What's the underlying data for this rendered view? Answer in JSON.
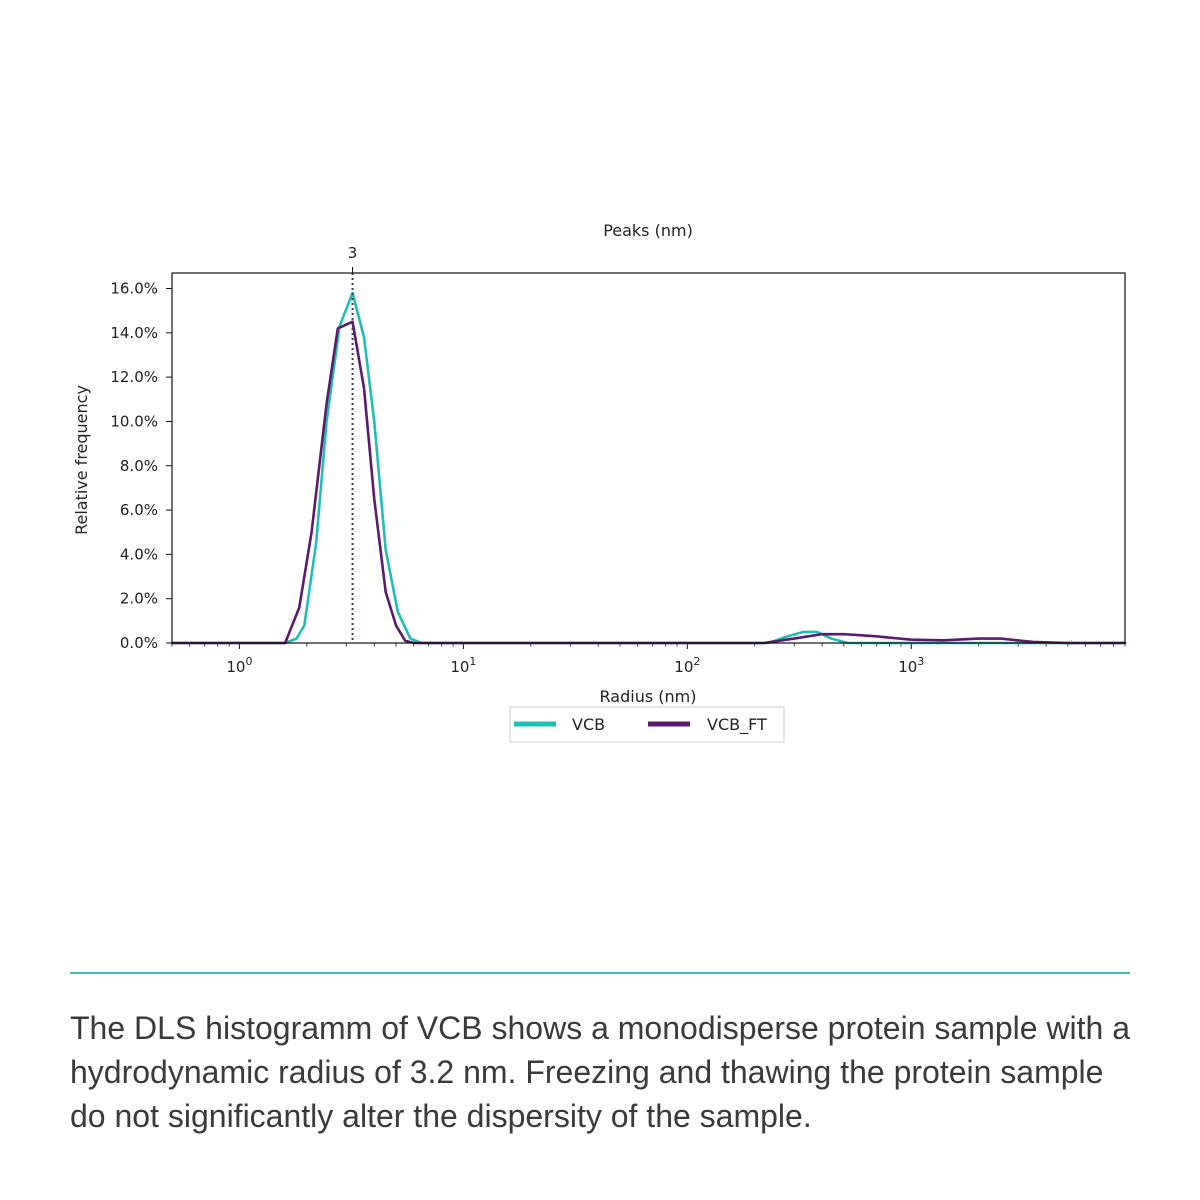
{
  "chart_data": {
    "type": "line",
    "top_axis_label": "Peaks (nm)",
    "peak_marker": {
      "x": 3.2,
      "label": "3"
    },
    "xlabel": "Radius (nm)",
    "ylabel": "Relative frequency",
    "x_scale": "log",
    "xlim": [
      0.5,
      9000
    ],
    "ylim": [
      0,
      0.167
    ],
    "x_ticks": [
      {
        "value": 1,
        "base": "10",
        "exp": "0"
      },
      {
        "value": 10,
        "base": "10",
        "exp": "1"
      },
      {
        "value": 100,
        "base": "10",
        "exp": "2"
      },
      {
        "value": 1000,
        "base": "10",
        "exp": "3"
      }
    ],
    "y_ticks": [
      {
        "value": 0.0,
        "label": "0.0%"
      },
      {
        "value": 0.02,
        "label": "2.0%"
      },
      {
        "value": 0.04,
        "label": "4.0%"
      },
      {
        "value": 0.06,
        "label": "6.0%"
      },
      {
        "value": 0.08,
        "label": "8.0%"
      },
      {
        "value": 0.1,
        "label": "10.0%"
      },
      {
        "value": 0.12,
        "label": "12.0%"
      },
      {
        "value": 0.14,
        "label": "14.0%"
      },
      {
        "value": 0.16,
        "label": "16.0%"
      }
    ],
    "legend_position": "bottom-center",
    "grid": false,
    "series": [
      {
        "name": "VCB",
        "color": "#1dbfb4",
        "points": [
          [
            0.5,
            0
          ],
          [
            1.6,
            0
          ],
          [
            1.8,
            0.002
          ],
          [
            1.95,
            0.008
          ],
          [
            2.2,
            0.045
          ],
          [
            2.45,
            0.1
          ],
          [
            2.8,
            0.143
          ],
          [
            3.2,
            0.158
          ],
          [
            3.6,
            0.138
          ],
          [
            4.0,
            0.1
          ],
          [
            4.5,
            0.042
          ],
          [
            5.1,
            0.014
          ],
          [
            5.8,
            0.002
          ],
          [
            6.5,
            0
          ],
          [
            100,
            0
          ],
          [
            230,
            0
          ],
          [
            280,
            0.003
          ],
          [
            330,
            0.005
          ],
          [
            380,
            0.005
          ],
          [
            440,
            0.002
          ],
          [
            520,
            0
          ],
          [
            9000,
            0
          ]
        ]
      },
      {
        "name": "VCB_FT",
        "color": "#5a1a6e",
        "points": [
          [
            0.5,
            0
          ],
          [
            1.6,
            0
          ],
          [
            1.85,
            0.016
          ],
          [
            2.1,
            0.05
          ],
          [
            2.45,
            0.108
          ],
          [
            2.75,
            0.142
          ],
          [
            3.2,
            0.145
          ],
          [
            3.6,
            0.115
          ],
          [
            4.0,
            0.065
          ],
          [
            4.5,
            0.023
          ],
          [
            5.0,
            0.008
          ],
          [
            5.5,
            0.001
          ],
          [
            6.0,
            0
          ],
          [
            100,
            0
          ],
          [
            220,
            0
          ],
          [
            300,
            0.002
          ],
          [
            400,
            0.004
          ],
          [
            500,
            0.004
          ],
          [
            700,
            0.003
          ],
          [
            1000,
            0.0015
          ],
          [
            1400,
            0.0012
          ],
          [
            2000,
            0.002
          ],
          [
            2500,
            0.002
          ],
          [
            3500,
            0.0005
          ],
          [
            5000,
            0
          ],
          [
            9000,
            0
          ]
        ]
      }
    ]
  },
  "caption": "The DLS histogramm of VCB shows a monodisperse protein sample with a hydrodynamic radius of 3.2 nm. Freezing and thawing the protein sample do not significantly alter the dispersity of the sample."
}
